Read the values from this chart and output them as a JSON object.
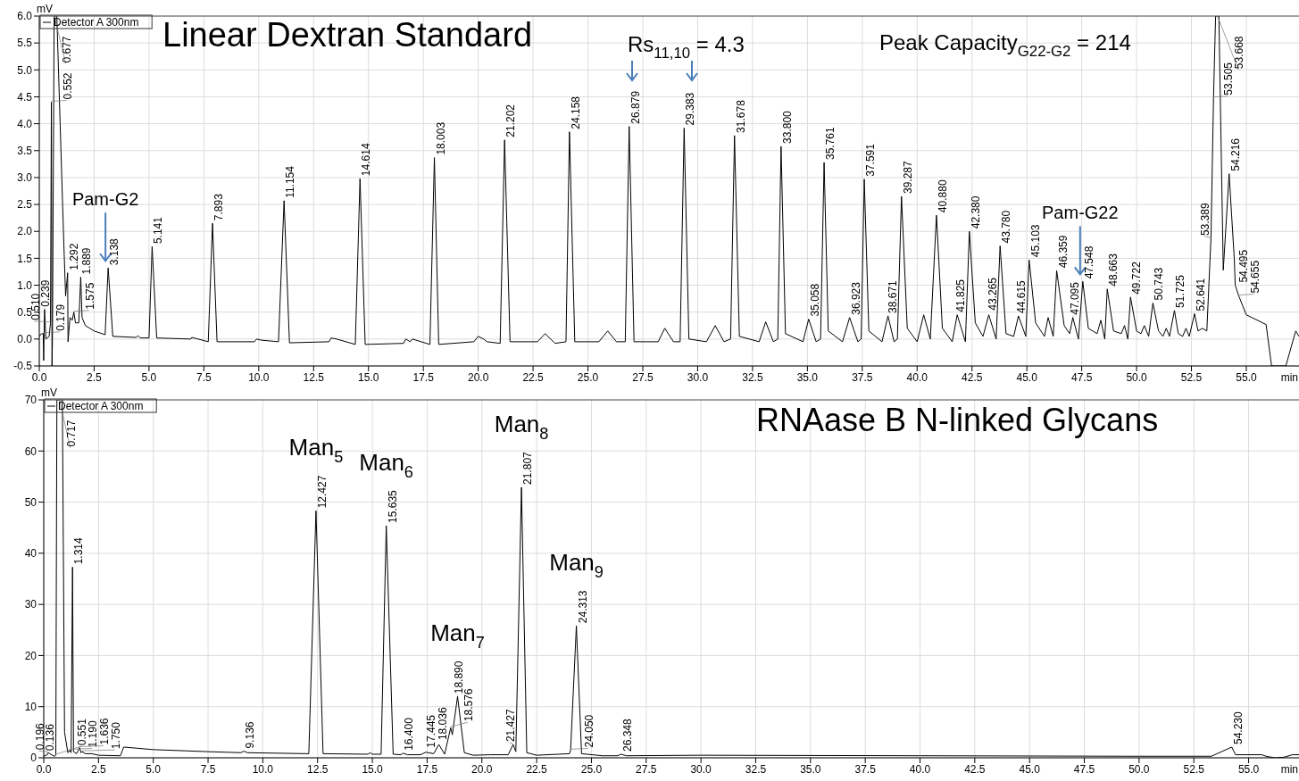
{
  "chart_data": [
    {
      "type": "line",
      "title": "Linear Dextran Standard",
      "xlabel": "min",
      "ylabel": "mV",
      "legend": "top left",
      "grid": true,
      "x": [
        0,
        0.1,
        0.179,
        0.2,
        0.239,
        0.3,
        0.45,
        0.51,
        0.552,
        0.58,
        0.6,
        0.677,
        0.8,
        0.95,
        1.1,
        1.2,
        1.292,
        1.31,
        1.4,
        1.5,
        1.575,
        1.65,
        1.8,
        1.889,
        1.95,
        2.1,
        2.5,
        3.0,
        3.138,
        3.35,
        4.4,
        4.5,
        4.6,
        5.0,
        5.141,
        5.35,
        6.9,
        6.95,
        7.7,
        7.893,
        8.1,
        9.8,
        9.9,
        10.1,
        10.9,
        11.154,
        11.4,
        13.2,
        13.3,
        13.55,
        14.4,
        14.614,
        14.85,
        16.6,
        16.7,
        16.9,
        17.0,
        17.8,
        18.003,
        18.2,
        19.8,
        20.0,
        20.25,
        20.4,
        21.0,
        21.202,
        21.45,
        22.7,
        23.05,
        23.3,
        23.5,
        24.0,
        24.158,
        24.4,
        25.5,
        25.9,
        26.3,
        26.7,
        26.879,
        27.1,
        28.2,
        28.5,
        28.9,
        29.2,
        29.383,
        29.6,
        30.4,
        30.8,
        31.2,
        31.5,
        31.678,
        31.9,
        32.8,
        33.1,
        33.45,
        33.65,
        33.8,
        34.0,
        34.8,
        35.058,
        35.4,
        35.6,
        35.761,
        35.95,
        36.6,
        36.923,
        37.3,
        37.45,
        37.591,
        37.8,
        38.4,
        38.671,
        38.95,
        39.1,
        39.287,
        39.55,
        40.0,
        40.3,
        40.6,
        40.88,
        41.15,
        41.6,
        41.825,
        42.2,
        42.38,
        42.65,
        43.0,
        43.265,
        43.6,
        43.78,
        44.05,
        44.4,
        44.615,
        44.95,
        45.103,
        45.4,
        45.8,
        45.97,
        46.2,
        46.359,
        46.7,
        46.95,
        47.095,
        47.35,
        47.548,
        47.8,
        48.2,
        48.37,
        48.55,
        48.663,
        48.95,
        49.3,
        49.45,
        49.6,
        49.722,
        50.0,
        50.2,
        50.35,
        50.55,
        50.743,
        51.0,
        51.2,
        51.35,
        51.5,
        51.725,
        51.9,
        52.1,
        52.25,
        52.4,
        52.641,
        52.8,
        53.0,
        53.2,
        53.389,
        53.505,
        53.6,
        53.668,
        53.75,
        53.95,
        54.216,
        54.45,
        54.495,
        54.655,
        55.0,
        55.9,
        56.15,
        56.8,
        57.25,
        57.4
      ],
      "series": [
        {
          "name": "Detector A 300nm",
          "color": "#000000",
          "values": [
            0.05,
            0.1,
            0.1,
            -0.4,
            0.55,
            0.0,
            0.05,
            0.3,
            4.4,
            -0.5,
            0.0,
            6.0,
            6.0,
            4.0,
            2.0,
            0.8,
            1.23,
            -0.05,
            0.4,
            0.35,
            0.5,
            0.3,
            0.3,
            1.15,
            0.4,
            0.25,
            0.15,
            0.08,
            1.32,
            0.05,
            0.03,
            0.06,
            0.02,
            0.02,
            1.72,
            0.02,
            0.0,
            0.03,
            -0.05,
            2.15,
            -0.05,
            -0.05,
            0.0,
            -0.02,
            -0.05,
            2.57,
            -0.07,
            -0.05,
            0.02,
            0.0,
            -0.1,
            2.98,
            -0.1,
            -0.08,
            0.0,
            -0.05,
            0.0,
            -0.1,
            3.37,
            -0.1,
            -0.05,
            0.05,
            0.0,
            -0.05,
            -0.08,
            3.7,
            -0.05,
            -0.05,
            0.1,
            0.0,
            -0.08,
            -0.05,
            3.85,
            -0.05,
            -0.05,
            0.15,
            -0.05,
            -0.05,
            3.95,
            -0.05,
            -0.05,
            0.2,
            -0.05,
            -0.05,
            3.92,
            0.0,
            -0.05,
            0.25,
            -0.05,
            0.0,
            3.78,
            0.05,
            -0.05,
            0.32,
            -0.05,
            0.0,
            3.58,
            0.1,
            -0.05,
            0.37,
            -0.05,
            0.0,
            3.28,
            0.15,
            -0.05,
            0.4,
            -0.05,
            0.0,
            2.97,
            0.15,
            -0.05,
            0.43,
            -0.05,
            0.0,
            2.65,
            0.2,
            -0.05,
            0.45,
            0.0,
            2.3,
            0.2,
            -0.05,
            0.45,
            -0.05,
            2.0,
            0.3,
            0.05,
            0.45,
            0.0,
            1.73,
            0.1,
            0.05,
            0.43,
            0.05,
            1.47,
            0.3,
            0.05,
            0.4,
            0.05,
            1.27,
            0.25,
            0.1,
            0.4,
            0.0,
            1.07,
            0.2,
            0.1,
            0.35,
            0.0,
            0.93,
            0.15,
            0.1,
            0.25,
            0.0,
            0.78,
            0.15,
            0.1,
            0.25,
            0.05,
            0.67,
            0.15,
            0.05,
            0.2,
            0.05,
            0.53,
            0.1,
            0.05,
            0.2,
            0.05,
            0.47,
            0.15,
            0.2,
            0.15,
            1.87,
            4.48,
            6.0,
            6.0,
            6.0,
            1.28,
            3.07,
            1.5,
            1.0,
            0.8,
            0.45,
            0.27,
            -0.5,
            -0.5,
            0.15,
            0.05
          ]
        }
      ],
      "xlim": [
        0,
        57.4
      ],
      "ylim": [
        -0.5,
        6.0
      ],
      "xticks": [
        {
          "value": 0,
          "label": "0.0"
        },
        {
          "value": 2.5,
          "label": "2.5"
        },
        {
          "value": 5,
          "label": "5.0"
        },
        {
          "value": 7.5,
          "label": "7.5"
        },
        {
          "value": 10,
          "label": "10.0"
        },
        {
          "value": 12.5,
          "label": "12.5"
        },
        {
          "value": 15,
          "label": "15.0"
        },
        {
          "value": 17.5,
          "label": "17.5"
        },
        {
          "value": 20,
          "label": "20.0"
        },
        {
          "value": 22.5,
          "label": "22.5"
        },
        {
          "value": 25,
          "label": "25.0"
        },
        {
          "value": 27.5,
          "label": "27.5"
        },
        {
          "value": 30,
          "label": "30.0"
        },
        {
          "value": 32.5,
          "label": "32.5"
        },
        {
          "value": 35,
          "label": "35.0"
        },
        {
          "value": 37.5,
          "label": "37.5"
        },
        {
          "value": 40,
          "label": "40.0"
        },
        {
          "value": 42.5,
          "label": "42.5"
        },
        {
          "value": 45,
          "label": "45.0"
        },
        {
          "value": 47.5,
          "label": "47.5"
        },
        {
          "value": 50,
          "label": "50.0"
        },
        {
          "value": 52.5,
          "label": "52.5"
        },
        {
          "value": 55,
          "label": "55.0"
        }
      ],
      "yticks": [
        {
          "value": -0.5,
          "label": "-0.5"
        },
        {
          "value": 0,
          "label": "0.0"
        },
        {
          "value": 0.5,
          "label": "0.5"
        },
        {
          "value": 1,
          "label": "1.0"
        },
        {
          "value": 1.5,
          "label": "1.5"
        },
        {
          "value": 2,
          "label": "2.0"
        },
        {
          "value": 2.5,
          "label": "2.5"
        },
        {
          "value": 3,
          "label": "3.0"
        },
        {
          "value": 3.5,
          "label": "3.5"
        },
        {
          "value": 4,
          "label": "4.0"
        },
        {
          "value": 4.5,
          "label": "4.5"
        },
        {
          "value": 5,
          "label": "5.0"
        },
        {
          "value": 5.5,
          "label": "5.5"
        },
        {
          "value": 6,
          "label": "6.0"
        }
      ],
      "annotations": [
        {
          "text": "Pam-G2",
          "x": 3.138,
          "y": 1.32
        },
        "Rs$_{11,10}$ = 4.3",
        "Peak Capacity$_{G22-G2}$ = 214",
        {
          "text": "Pam-G22",
          "x": 47.548,
          "y": 1.07
        },
        {
          "text": "0.179",
          "x": 0.179,
          "y": 0.1
        },
        {
          "text": "0.239",
          "x": 0.239,
          "y": 0.55
        },
        {
          "text": "0.510",
          "x": 0.51,
          "y": 0.3
        },
        {
          "text": "0.552",
          "x": 0.552,
          "y": 4.4
        },
        {
          "text": "0.677",
          "x": 0.677,
          "y": 6.0
        },
        {
          "text": "1.292",
          "x": 1.292,
          "y": 1.23
        },
        {
          "text": "1.575",
          "x": 1.575,
          "y": 0.5
        },
        {
          "text": "1.889",
          "x": 1.889,
          "y": 1.15
        },
        {
          "text": "3.138",
          "x": 3.138,
          "y": 1.32
        },
        {
          "text": "5.141",
          "x": 5.141,
          "y": 1.72
        },
        {
          "text": "7.893",
          "x": 7.893,
          "y": 2.15
        },
        {
          "text": "11.154",
          "x": 11.154,
          "y": 2.57
        },
        {
          "text": "14.614",
          "x": 14.614,
          "y": 2.98
        },
        {
          "text": "18.003",
          "x": 18.003,
          "y": 3.37
        },
        {
          "text": "21.202",
          "x": 21.202,
          "y": 3.7
        },
        {
          "text": "24.158",
          "x": 24.158,
          "y": 3.85
        },
        {
          "text": "26.879",
          "x": 26.879,
          "y": 3.95
        },
        {
          "text": "29.383",
          "x": 29.383,
          "y": 3.92
        },
        {
          "text": "31.678",
          "x": 31.678,
          "y": 3.78
        },
        {
          "text": "33.800",
          "x": 33.8,
          "y": 3.58
        },
        {
          "text": "35.058",
          "x": 35.058,
          "y": 0.37
        },
        {
          "text": "35.761",
          "x": 35.761,
          "y": 3.28
        },
        {
          "text": "36.923",
          "x": 36.923,
          "y": 0.4
        },
        {
          "text": "37.591",
          "x": 37.591,
          "y": 2.97
        },
        {
          "text": "38.671",
          "x": 38.671,
          "y": 0.43
        },
        {
          "text": "39.287",
          "x": 39.287,
          "y": 2.65
        },
        {
          "text": "40.880",
          "x": 40.88,
          "y": 2.3
        },
        {
          "text": "41.825",
          "x": 41.825,
          "y": 0.45
        },
        {
          "text": "42.380",
          "x": 42.38,
          "y": 2.0
        },
        {
          "text": "43.265",
          "x": 43.265,
          "y": 0.45
        },
        {
          "text": "43.780",
          "x": 43.78,
          "y": 1.73
        },
        {
          "text": "44.615",
          "x": 44.615,
          "y": 0.43
        },
        {
          "text": "45.103",
          "x": 45.103,
          "y": 1.47
        },
        {
          "text": "46.359",
          "x": 46.359,
          "y": 1.27
        },
        {
          "text": "47.095",
          "x": 47.095,
          "y": 0.4
        },
        {
          "text": "47.548",
          "x": 47.548,
          "y": 1.07
        },
        {
          "text": "48.663",
          "x": 48.663,
          "y": 0.93
        },
        {
          "text": "49.722",
          "x": 49.722,
          "y": 0.78
        },
        {
          "text": "50.743",
          "x": 50.743,
          "y": 0.67
        },
        {
          "text": "51.725",
          "x": 51.725,
          "y": 0.53
        },
        {
          "text": "52.641",
          "x": 52.641,
          "y": 0.47
        },
        {
          "text": "53.389",
          "x": 53.389,
          "y": 1.87
        },
        {
          "text": "53.505",
          "x": 53.505,
          "y": 4.48
        },
        {
          "text": "53.668",
          "x": 53.668,
          "y": 6.0
        },
        {
          "text": "54.216",
          "x": 54.216,
          "y": 3.07
        },
        {
          "text": "54.495",
          "x": 54.495,
          "y": 1.0
        },
        {
          "text": "54.655",
          "x": 54.655,
          "y": 0.8
        }
      ]
    },
    {
      "type": "line",
      "title": "RNAase B N-linked Glycans",
      "xlabel": "min",
      "ylabel": "mV",
      "legend": "top left",
      "grid": true,
      "x": [
        0,
        0.1,
        0.136,
        0.196,
        0.4,
        0.5,
        0.551,
        0.6,
        0.717,
        0.85,
        0.95,
        1.1,
        1.19,
        1.25,
        1.314,
        1.36,
        1.5,
        1.636,
        1.7,
        1.75,
        1.9,
        2.2,
        2.5,
        3.5,
        3.65,
        5.0,
        7.5,
        9.0,
        9.136,
        9.3,
        12.1,
        12.427,
        12.75,
        14.8,
        14.9,
        15.0,
        15.4,
        15.635,
        15.95,
        16.3,
        16.4,
        16.6,
        17.2,
        17.445,
        17.8,
        18.036,
        18.3,
        18.576,
        18.65,
        18.89,
        19.2,
        19.6,
        20.4,
        21.2,
        21.427,
        21.55,
        21.807,
        22.05,
        22.5,
        24.0,
        24.05,
        24.313,
        24.55,
        25.5,
        26.2,
        26.348,
        26.6,
        30.0,
        40.0,
        50.0,
        53.3,
        54.23,
        54.4,
        55.6,
        55.8,
        56.2,
        56.6,
        57.0,
        57.3
      ],
      "series": [
        {
          "name": "Detector A 300nm",
          "color": "#000000",
          "values": [
            0.3,
            0.5,
            0.5,
            1.0,
            0.5,
            0.3,
            0.5,
            70,
            70,
            70,
            5,
            1.0,
            1.5,
            1.0,
            37.3,
            1.2,
            0.8,
            2.0,
            1.0,
            1.2,
            0.8,
            0.8,
            0.5,
            0.4,
            2.1,
            1.6,
            1.2,
            1.0,
            1.3,
            1.0,
            0.8,
            48.3,
            0.8,
            0.7,
            1.0,
            0.7,
            0.7,
            45.4,
            0.7,
            0.6,
            0.9,
            0.6,
            0.6,
            1.1,
            0.8,
            2.6,
            0.7,
            5.9,
            4.5,
            12.0,
            1.0,
            0.5,
            0.6,
            0.6,
            2.6,
            1.2,
            52.9,
            1.0,
            0.5,
            0.8,
            1.5,
            25.8,
            0.8,
            0.4,
            0.4,
            0.7,
            0.4,
            0.5,
            0.4,
            0.3,
            0.3,
            2.1,
            0.6,
            0.6,
            0.3,
            0.0,
            0.1,
            0.6,
            0.6
          ]
        }
      ],
      "xlim": [
        0,
        57.3
      ],
      "ylim": [
        0,
        70
      ],
      "xticks": [
        {
          "value": 0,
          "label": "0.0"
        },
        {
          "value": 2.5,
          "label": "2.5"
        },
        {
          "value": 5,
          "label": "5.0"
        },
        {
          "value": 7.5,
          "label": "7.5"
        },
        {
          "value": 10,
          "label": "10.0"
        },
        {
          "value": 12.5,
          "label": "12.5"
        },
        {
          "value": 15,
          "label": "15.0"
        },
        {
          "value": 17.5,
          "label": "17.5"
        },
        {
          "value": 20,
          "label": "20.0"
        },
        {
          "value": 22.5,
          "label": "22.5"
        },
        {
          "value": 25,
          "label": "25.0"
        },
        {
          "value": 27.5,
          "label": "27.5"
        },
        {
          "value": 30,
          "label": "30.0"
        },
        {
          "value": 32.5,
          "label": "32.5"
        },
        {
          "value": 35,
          "label": "35.0"
        },
        {
          "value": 37.5,
          "label": "37.5"
        },
        {
          "value": 40,
          "label": "40.0"
        },
        {
          "value": 42.5,
          "label": "42.5"
        },
        {
          "value": 45,
          "label": "45.0"
        },
        {
          "value": 47.5,
          "label": "47.5"
        },
        {
          "value": 50,
          "label": "50.0"
        },
        {
          "value": 52.5,
          "label": "52.5"
        },
        {
          "value": 55,
          "label": "55.0"
        }
      ],
      "yticks": [
        0,
        10,
        20,
        30,
        40,
        50,
        60,
        70
      ],
      "annotations": [
        {
          "text": "Man$_{5}$",
          "x": 12.427,
          "y": 48.3
        },
        {
          "text": "Man$_{6}$",
          "x": 15.635,
          "y": 45.4
        },
        {
          "text": "Man$_{7}$",
          "x": 18.89,
          "y": 12.0
        },
        {
          "text": "Man$_{8}$",
          "x": 21.807,
          "y": 52.9
        },
        {
          "text": "Man$_{9}$",
          "x": 24.313,
          "y": 25.8
        },
        {
          "text": "0.136",
          "x": 0.136,
          "y": 0.5
        },
        {
          "text": "0.196",
          "x": 0.196,
          "y": 1.0
        },
        {
          "text": "0.551",
          "x": 0.551,
          "y": 0.5
        },
        {
          "text": "0.717",
          "x": 0.717,
          "y": 70
        },
        {
          "text": "1.190",
          "x": 1.19,
          "y": 1.5
        },
        {
          "text": "1.314",
          "x": 1.314,
          "y": 37.3
        },
        {
          "text": "1.636",
          "x": 1.636,
          "y": 2.0
        },
        {
          "text": "1.750",
          "x": 1.75,
          "y": 1.2
        },
        {
          "text": "9.136",
          "x": 9.136,
          "y": 1.3
        },
        {
          "text": "12.427",
          "x": 12.427,
          "y": 48.3
        },
        {
          "text": "15.635",
          "x": 15.635,
          "y": 45.4
        },
        {
          "text": "16.400",
          "x": 16.4,
          "y": 0.9
        },
        {
          "text": "17.445",
          "x": 17.445,
          "y": 1.1
        },
        {
          "text": "18.036",
          "x": 18.036,
          "y": 2.6
        },
        {
          "text": "18.576",
          "x": 18.576,
          "y": 5.9
        },
        {
          "text": "18.890",
          "x": 18.89,
          "y": 12.0
        },
        {
          "text": "21.427",
          "x": 21.427,
          "y": 2.6
        },
        {
          "text": "21.807",
          "x": 21.807,
          "y": 52.9
        },
        {
          "text": "24.050",
          "x": 24.05,
          "y": 1.5
        },
        {
          "text": "24.313",
          "x": 24.313,
          "y": 25.8
        },
        {
          "text": "26.348",
          "x": 26.348,
          "y": 0.7
        },
        {
          "text": "54.230",
          "x": 54.23,
          "y": 2.1
        }
      ]
    }
  ]
}
